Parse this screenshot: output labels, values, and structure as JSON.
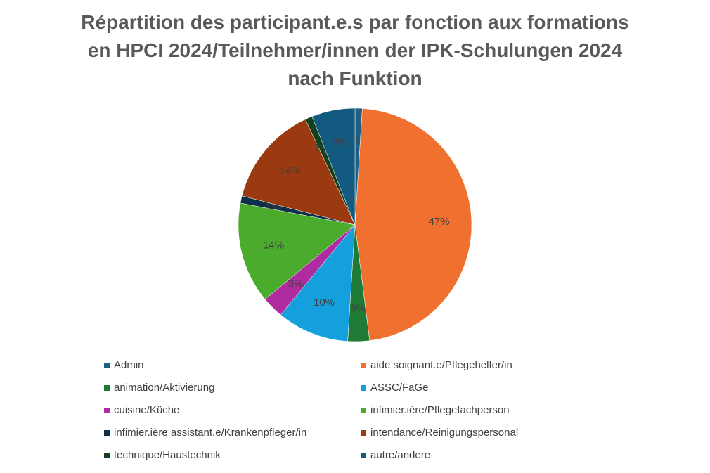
{
  "chart_data": {
    "type": "pie",
    "title": "Répartition des participant.e.s par fonction aux formations en HPCI 2024/Teilnehmer/innen der IPK-Schulungen 2024 nach Funktion",
    "categories": [
      "Admin",
      "aide soignant.e/Pflegehelfer/in",
      "animation/Aktivierung",
      "ASSC/FaGe",
      "cuisine/Küche",
      "infimier.ière/Pflegefachperson",
      "infimier.ière assistant.e/Krankenpfleger/in",
      "intendance/Reinigungspersonal",
      "technique/Haustechnik",
      "autre/andere"
    ],
    "values": [
      1,
      47,
      3,
      10,
      3,
      14,
      1,
      14,
      1,
      6
    ],
    "value_labels": [
      "1%",
      "47%",
      "3%",
      "10%",
      "3%",
      "14%",
      "1%",
      "14%",
      "1%",
      "6%"
    ],
    "colors": [
      "#1f5f84",
      "#f07030",
      "#1e7a34",
      "#13a0dc",
      "#b02ba0",
      "#4aab2c",
      "#0e2f48",
      "#9b3a10",
      "#13401e",
      "#135a80"
    ],
    "legend": "bottom"
  }
}
